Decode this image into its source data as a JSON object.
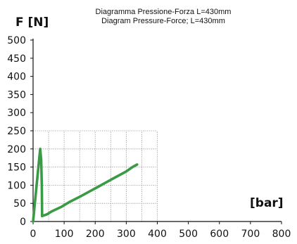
{
  "chart_data": {
    "type": "line",
    "title_line1": "Diagramma Pressione-Forza L=430mm",
    "title_line2": "Diagram Pressure-Force; L=430mm",
    "ylabel": "F [N]",
    "xlabel": "[bar]",
    "xlim": [
      0,
      800
    ],
    "ylim": [
      0,
      500
    ],
    "x_ticks": [
      "0",
      "100",
      "200",
      "300",
      "400",
      "500",
      "600",
      "700",
      "800"
    ],
    "y_ticks": [
      "500",
      "450",
      "400",
      "350",
      "300",
      "250",
      "200",
      "150",
      "100",
      "50",
      "0"
    ],
    "grid": {
      "x_max": 400,
      "y_max": 250,
      "x_step": 50,
      "y_step": 50,
      "style": "dotted"
    },
    "series": [
      {
        "color": "#3a9a45",
        "points": [
          [
            0,
            0
          ],
          [
            20,
            175
          ],
          [
            23,
            200
          ],
          [
            26,
            170
          ],
          [
            28,
            100
          ],
          [
            29,
            15
          ],
          [
            45,
            20
          ],
          [
            60,
            28
          ],
          [
            90,
            40
          ],
          [
            120,
            55
          ],
          [
            150,
            68
          ],
          [
            180,
            82
          ],
          [
            210,
            96
          ],
          [
            240,
            110
          ],
          [
            270,
            124
          ],
          [
            300,
            138
          ],
          [
            320,
            150
          ],
          [
            335,
            157
          ]
        ]
      }
    ]
  }
}
